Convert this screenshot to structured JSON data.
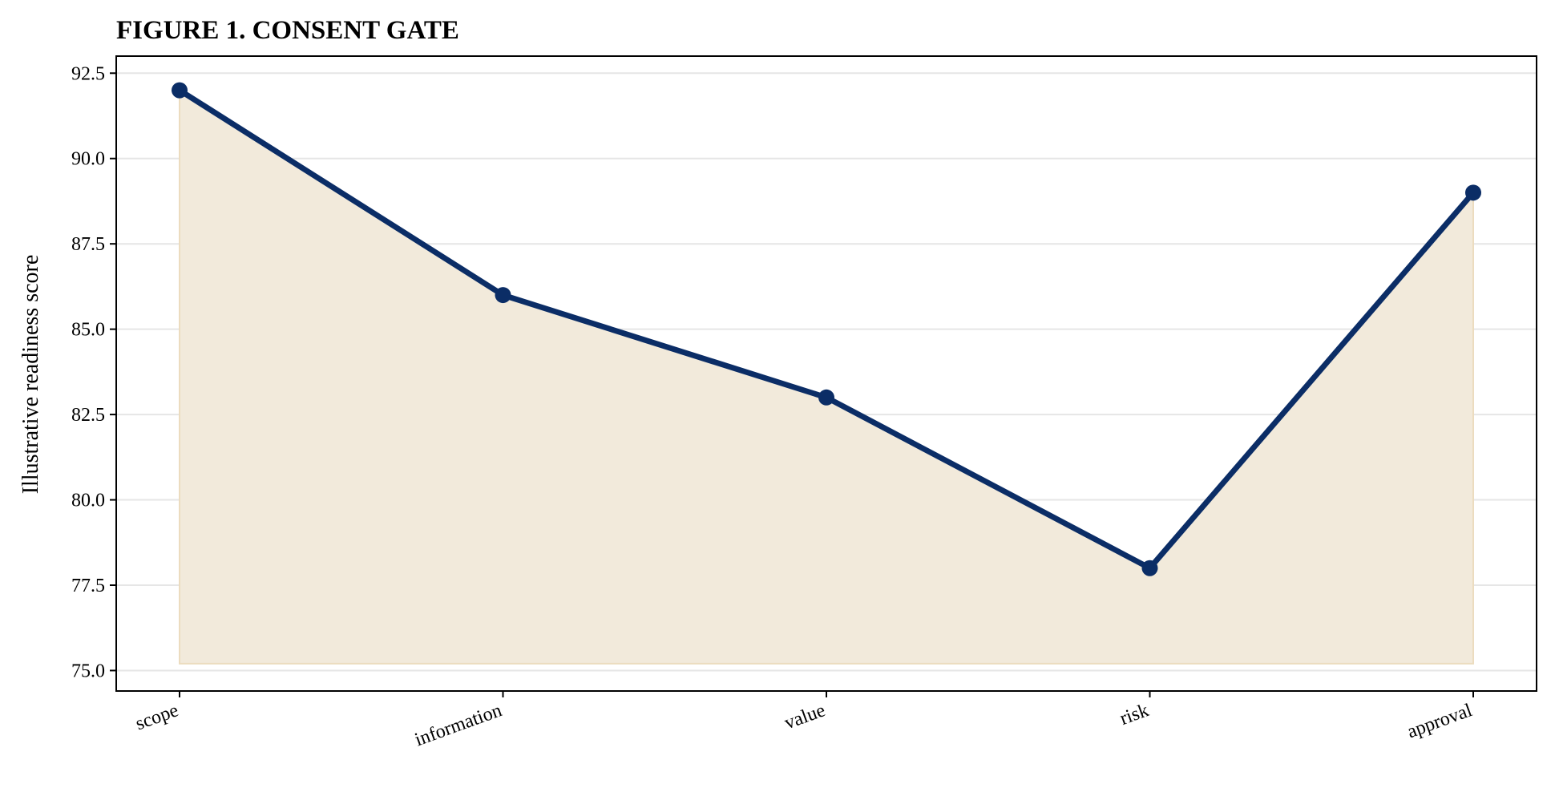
{
  "chart_data": {
    "type": "line",
    "title": "FIGURE 1. CONSENT GATE",
    "xlabel": "",
    "ylabel": "Illustrative readiness score",
    "categories": [
      "scope",
      "information",
      "value",
      "risk",
      "approval"
    ],
    "series": [
      {
        "values": [
          92,
          86,
          83,
          78,
          89
        ]
      }
    ],
    "area_fill_baseline": 75.2,
    "ylim": [
      74.4,
      93.0
    ],
    "yticks": [
      75.0,
      77.5,
      80.0,
      82.5,
      85.0,
      87.5,
      90.0,
      92.5
    ],
    "ytick_labels": [
      "75.0",
      "77.5",
      "80.0",
      "82.5",
      "85.0",
      "87.5",
      "90.0",
      "92.5"
    ],
    "grid": "horizontal",
    "legend": "none",
    "colors": {
      "line": "#0b2d66",
      "marker": "#0b2d66",
      "area": "#f2eadb",
      "area_edge": "#ecdcbf",
      "grid": "#e6e6e6",
      "axis": "#000000"
    }
  }
}
